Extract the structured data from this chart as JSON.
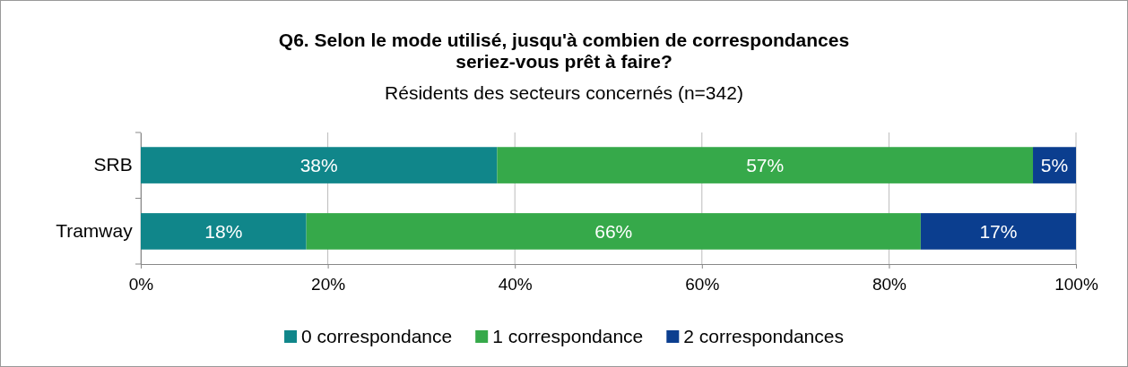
{
  "chart_data": {
    "type": "bar",
    "orientation": "horizontal",
    "stacked": true,
    "title": "Q6. Selon le mode utilisé, jusqu'à combien de correspondances seriez-vous prêt à faire?",
    "subtitle": "Résidents des secteurs concernés (n=342)",
    "categories": [
      "SRB",
      "Tramway"
    ],
    "series": [
      {
        "name": "0 correspondance",
        "color": "#10868a",
        "values": [
          38.1,
          17.7
        ],
        "value_labels": [
          "38%",
          "18%"
        ]
      },
      {
        "name": "1 correspondance",
        "color": "#36a94a",
        "values": [
          57.3,
          65.7
        ],
        "value_labels": [
          "57%",
          "66%"
        ]
      },
      {
        "name": "2 correspondances",
        "color": "#0b3e8f",
        "values": [
          4.6,
          16.6
        ],
        "value_labels": [
          "5%",
          "17%"
        ]
      }
    ],
    "xlim": [
      0,
      100
    ],
    "xticks": [
      {
        "value": 0,
        "label": "0%"
      },
      {
        "value": 20,
        "label": "20%"
      },
      {
        "value": 40,
        "label": "40%"
      },
      {
        "value": 60,
        "label": "60%"
      },
      {
        "value": 80,
        "label": "80%"
      },
      {
        "value": 100,
        "label": "100%"
      }
    ],
    "grid": "x",
    "legend": "bottom"
  }
}
